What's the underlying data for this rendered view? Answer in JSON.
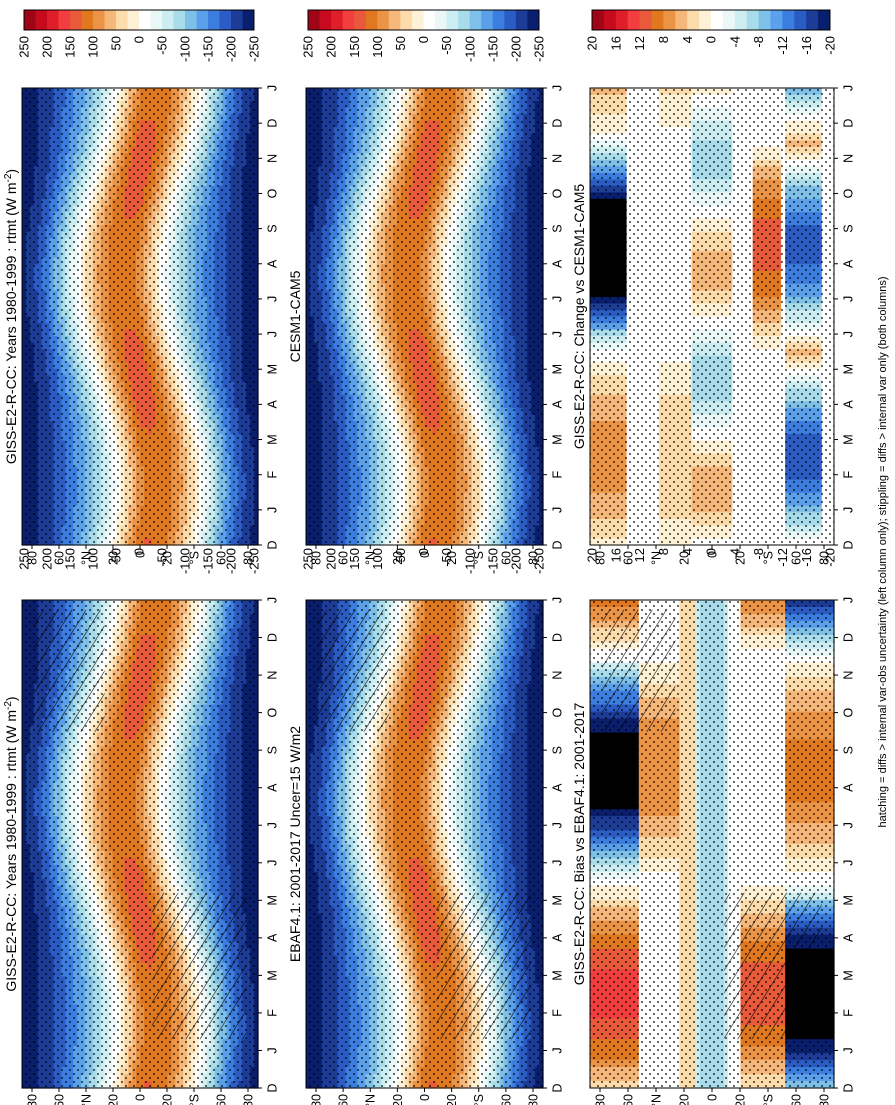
{
  "chart_data": [
    {
      "type": "heatmap",
      "title": "GISS-E2-R-CC: Years 1980-1999 : rtmt (W m",
      "title_sup": "-2",
      "title_close": ")",
      "months": [
        "D",
        "J",
        "F",
        "M",
        "A",
        "M",
        "J",
        "J",
        "A",
        "S",
        "O",
        "N",
        "D",
        "J"
      ],
      "lat_ticks": [
        "80",
        "60",
        "°N",
        "20",
        "0",
        "20",
        "°S",
        "60",
        "80"
      ],
      "colorbar_labels": [
        "250",
        "200",
        "150",
        "100",
        "50",
        "0",
        "-50",
        "-100",
        "-150",
        "-200",
        "-250"
      ],
      "range": [
        -250,
        250
      ],
      "hatching": true,
      "stippling": true
    },
    {
      "type": "heatmap",
      "title": "GISS-E2-R-CC: Years 1980-1999 : rtmt (W m",
      "title_sup": "-2",
      "title_close": ")",
      "months": [
        "D",
        "J",
        "F",
        "M",
        "A",
        "M",
        "J",
        "J",
        "A",
        "S",
        "O",
        "N",
        "D",
        "J"
      ],
      "lat_ticks": [
        "80",
        "60",
        "°N",
        "20",
        "0",
        "20",
        "°S",
        "60",
        "80"
      ],
      "colorbar_labels": [
        "250",
        "200",
        "150",
        "100",
        "50",
        "0",
        "-50",
        "-100",
        "-150",
        "-200",
        "-250"
      ],
      "range": [
        -250,
        250
      ],
      "hatching": false,
      "stippling": true
    },
    {
      "type": "heatmap",
      "title": "EBAF4.1: 2001-2017 Uncer=15 W/m2",
      "title_sup": "",
      "title_close": "",
      "months": [
        "D",
        "J",
        "F",
        "M",
        "A",
        "M",
        "J",
        "J",
        "A",
        "S",
        "O",
        "N",
        "D",
        "J"
      ],
      "lat_ticks": [
        "80",
        "60",
        "°N",
        "20",
        "0",
        "20",
        "°S",
        "60",
        "80"
      ],
      "colorbar_labels": [
        "250",
        "200",
        "150",
        "100",
        "50",
        "0",
        "-50",
        "-100",
        "-150",
        "-200",
        "-250"
      ],
      "range": [
        -250,
        250
      ],
      "hatching": true,
      "stippling": true
    },
    {
      "type": "heatmap",
      "title": "CESM1-CAM5",
      "title_sup": "",
      "title_close": "",
      "months": [
        "D",
        "J",
        "F",
        "M",
        "A",
        "M",
        "J",
        "J",
        "A",
        "S",
        "O",
        "N",
        "D",
        "J"
      ],
      "lat_ticks": [
        "80",
        "60",
        "°N",
        "20",
        "0",
        "20",
        "°S",
        "60",
        "80"
      ],
      "colorbar_labels": [
        "250",
        "200",
        "150",
        "100",
        "50",
        "0",
        "-50",
        "-100",
        "-150",
        "-200",
        "-250"
      ],
      "range": [
        -250,
        250
      ],
      "hatching": false,
      "stippling": true
    },
    {
      "type": "heatmap",
      "title": "GISS-E2-R-CC: Bias vs EBAF4.1: 2001-2017",
      "title_sup": "",
      "title_close": "",
      "months": [
        "D",
        "J",
        "F",
        "M",
        "A",
        "M",
        "J",
        "J",
        "A",
        "S",
        "O",
        "N",
        "D",
        "J"
      ],
      "lat_ticks": [
        "80",
        "60",
        "°N",
        "20",
        "0",
        "20",
        "°S",
        "60",
        "80"
      ],
      "colorbar_labels": [
        "20",
        "16",
        "12",
        "8",
        "4",
        "0",
        "-4",
        "-8",
        "-12",
        "-16",
        "-20"
      ],
      "range": [
        -20,
        20
      ],
      "hatching": true,
      "stippling": true
    },
    {
      "type": "heatmap",
      "title": "GISS-E2-R-CC: Change vs CESM1-CAM5",
      "title_sup": "",
      "title_close": "",
      "months": [
        "D",
        "J",
        "F",
        "M",
        "A",
        "M",
        "J",
        "J",
        "A",
        "S",
        "O",
        "N",
        "D",
        "J"
      ],
      "lat_ticks": [
        "80",
        "60",
        "°N",
        "20",
        "0",
        "20",
        "°S",
        "60",
        "80"
      ],
      "colorbar_labels": [
        "20",
        "16",
        "12",
        "8",
        "4",
        "0",
        "-4",
        "-8",
        "-12",
        "-16",
        "-20"
      ],
      "range": [
        -20,
        20
      ],
      "hatching": false,
      "stippling": true
    }
  ],
  "footnote": "hatching = diffs > internal var-obs uncertainty (left column only); stippling = diffs > internal var only (both columns)",
  "palette": [
    "#000000",
    "#0a1e6e",
    "#1c3c98",
    "#2a5cc4",
    "#3c7ee0",
    "#5aa0ea",
    "#7fc0e8",
    "#a8dcea",
    "#cceef2",
    "#eaf8f8",
    "#ffffff",
    "#fdf1d6",
    "#fcdcaa",
    "#f6b87a",
    "#ec9446",
    "#e07820",
    "#e85a3a",
    "#f23e3e",
    "#e01e2a",
    "#c80a1e",
    "#9e0618"
  ]
}
